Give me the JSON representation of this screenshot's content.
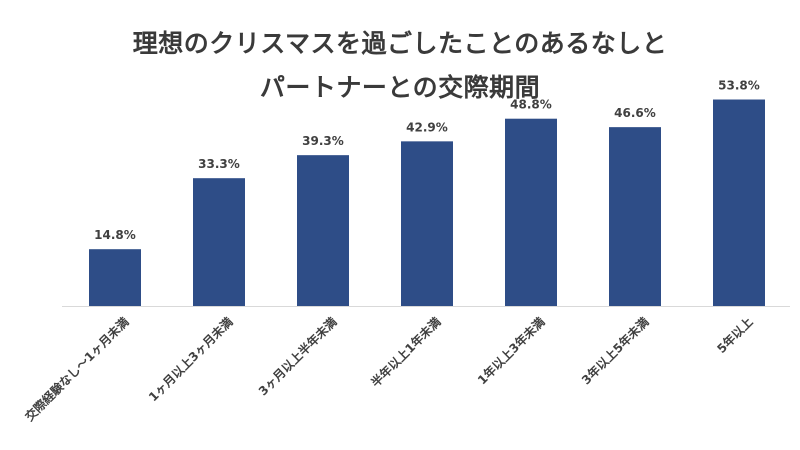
{
  "chart_data": {
    "type": "bar",
    "title_lines": [
      "理想のクリスマスを過ごしたことのあるなしと",
      "パートナーとの交際期間"
    ],
    "categories": [
      "交際経験なし〜1ヶ月未満",
      "1ヶ月以上3ヶ月未満",
      "3ヶ月以上半年未満",
      "半年以上1年未満",
      "1年以上3年未満",
      "3年以上5年未満",
      "5年以上"
    ],
    "values": [
      14.8,
      33.3,
      39.3,
      42.9,
      48.8,
      46.6,
      53.8
    ],
    "data_labels": [
      "14.8%",
      "33.3%",
      "39.3%",
      "42.9%",
      "48.8%",
      "46.6%",
      "53.8%"
    ],
    "unit": "%",
    "ylim": [
      0,
      60
    ],
    "grid": false,
    "legend": "none",
    "bar_color": "#2e4d87"
  }
}
